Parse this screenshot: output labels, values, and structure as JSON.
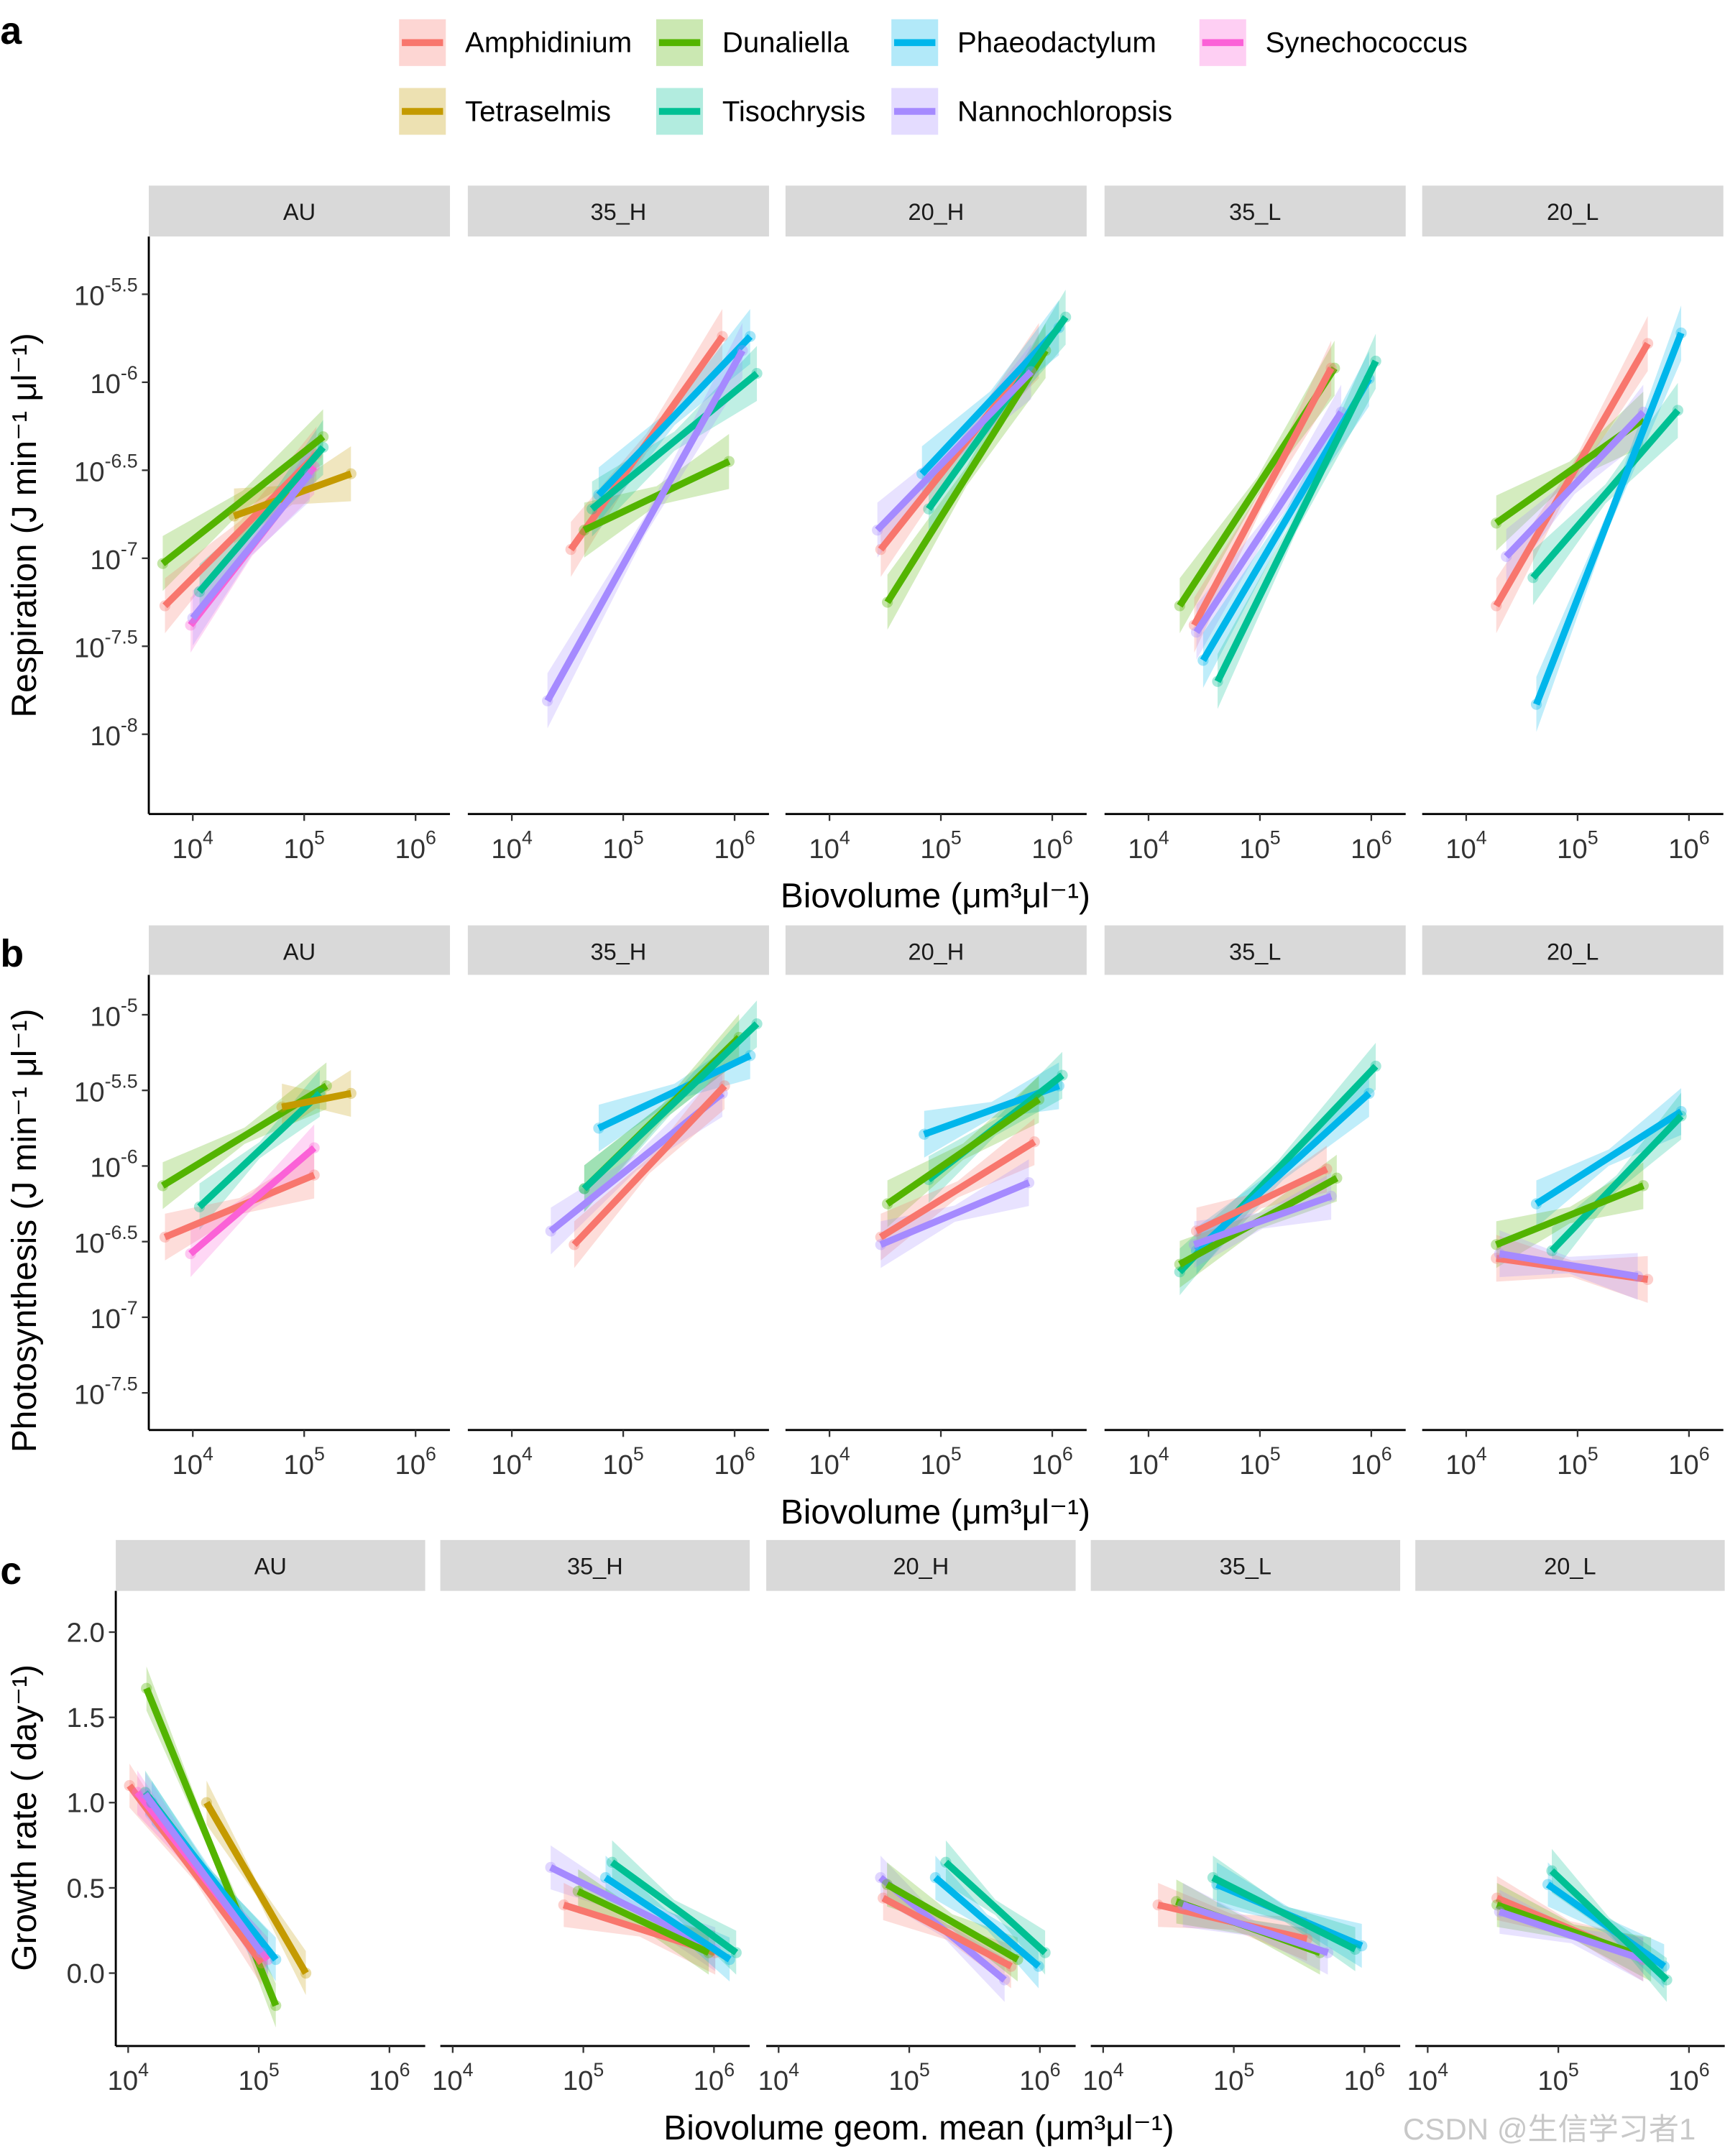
{
  "watermark": "CSDN @生信学习者1",
  "legend": [
    {
      "name": "Amphidinium",
      "color": "#F8766D"
    },
    {
      "name": "Dunaliella",
      "color": "#53B400"
    },
    {
      "name": "Phaeodactylum",
      "color": "#00B6EB"
    },
    {
      "name": "Synechococcus",
      "color": "#FB61D7"
    },
    {
      "name": "Tetraselmis",
      "color": "#C49A00"
    },
    {
      "name": "Tisochrysis",
      "color": "#00C094"
    },
    {
      "name": "Nannochloropsis",
      "color": "#A58AFF"
    }
  ],
  "chart_data": [
    {
      "panel_label": "a",
      "type": "line",
      "scale": "log10 x, log10 y",
      "facets": [
        "AU",
        "35_H",
        "20_H",
        "35_L",
        "20_L"
      ],
      "xlabel": "Biovolume (μm³μl⁻¹)",
      "ylabel": "Respiration (J min⁻¹ μl⁻¹)",
      "x_ticks": [
        "4",
        "5",
        "6"
      ],
      "y_ticks": [
        "-5.5",
        "-6",
        "-6.5",
        "-7",
        "-7.5",
        "-8"
      ],
      "series_by_facet": [
        [
          {
            "name": "Dunaliella",
            "x_log10": [
              3.73,
              5.17
            ],
            "y_log10": [
              -7.03,
              -6.31
            ]
          },
          {
            "name": "Amphidinium",
            "x_log10": [
              3.75,
              5.11
            ],
            "y_log10": [
              -7.27,
              -6.41
            ]
          },
          {
            "name": "Tetraselmis",
            "x_log10": [
              4.37,
              5.42
            ],
            "y_log10": [
              -6.76,
              -6.52
            ]
          },
          {
            "name": "Synechococcus",
            "x_log10": [
              3.98,
              5.09
            ],
            "y_log10": [
              -7.38,
              -6.48
            ]
          },
          {
            "name": "Tisochrysis",
            "x_log10": [
              4.06,
              5.17
            ],
            "y_log10": [
              -7.19,
              -6.37
            ]
          },
          {
            "name": "Nannochloropsis",
            "x_log10": [
              4.0,
              5.05
            ],
            "y_log10": [
              -7.34,
              -6.52
            ]
          }
        ],
        [
          {
            "name": "Amphidinium",
            "x_log10": [
              4.53,
              5.89
            ],
            "y_log10": [
              -6.95,
              -5.74
            ]
          },
          {
            "name": "Dunaliella",
            "x_log10": [
              4.65,
              5.95
            ],
            "y_log10": [
              -6.84,
              -6.45
            ]
          },
          {
            "name": "Phaeodactylum",
            "x_log10": [
              4.78,
              6.14
            ],
            "y_log10": [
              -6.64,
              -5.74
            ]
          },
          {
            "name": "Tisochrysis",
            "x_log10": [
              4.72,
              6.2
            ],
            "y_log10": [
              -6.72,
              -5.95
            ]
          },
          {
            "name": "Nannochloropsis",
            "x_log10": [
              4.32,
              6.07
            ],
            "y_log10": [
              -7.81,
              -5.82
            ]
          }
        ],
        [
          {
            "name": "Amphidinium",
            "x_log10": [
              4.46,
              5.88
            ],
            "y_log10": [
              -6.95,
              -5.82
            ]
          },
          {
            "name": "Dunaliella",
            "x_log10": [
              4.52,
              5.94
            ],
            "y_log10": [
              -7.25,
              -5.82
            ]
          },
          {
            "name": "Phaeodactylum",
            "x_log10": [
              4.83,
              6.06
            ],
            "y_log10": [
              -6.52,
              -5.69
            ]
          },
          {
            "name": "Tisochrysis",
            "x_log10": [
              4.89,
              6.12
            ],
            "y_log10": [
              -6.72,
              -5.63
            ]
          },
          {
            "name": "Nannochloropsis",
            "x_log10": [
              4.43,
              5.81
            ],
            "y_log10": [
              -6.84,
              -5.94
            ]
          }
        ],
        [
          {
            "name": "Dunaliella",
            "x_log10": [
              4.28,
              5.67
            ],
            "y_log10": [
              -7.27,
              -5.92
            ]
          },
          {
            "name": "Amphidinium",
            "x_log10": [
              4.41,
              5.64
            ],
            "y_log10": [
              -7.38,
              -5.92
            ]
          },
          {
            "name": "Nannochloropsis",
            "x_log10": [
              4.43,
              5.73
            ],
            "y_log10": [
              -7.42,
              -6.17
            ]
          },
          {
            "name": "Phaeodactylum",
            "x_log10": [
              4.49,
              5.98
            ],
            "y_log10": [
              -7.58,
              -5.98
            ]
          },
          {
            "name": "Tisochrysis",
            "x_log10": [
              4.62,
              6.04
            ],
            "y_log10": [
              -7.7,
              -5.88
            ]
          }
        ],
        [
          {
            "name": "Amphidinium",
            "x_log10": [
              4.27,
              5.63
            ],
            "y_log10": [
              -7.27,
              -5.78
            ]
          },
          {
            "name": "Dunaliella",
            "x_log10": [
              4.27,
              5.59
            ],
            "y_log10": [
              -6.8,
              -6.21
            ]
          },
          {
            "name": "Nannochloropsis",
            "x_log10": [
              4.36,
              5.59
            ],
            "y_log10": [
              -6.99,
              -6.17
            ]
          },
          {
            "name": "Tisochrysis",
            "x_log10": [
              4.6,
              5.9
            ],
            "y_log10": [
              -7.11,
              -6.16
            ]
          },
          {
            "name": "Phaeodactylum",
            "x_log10": [
              4.63,
              5.93
            ],
            "y_log10": [
              -7.83,
              -5.72
            ]
          }
        ]
      ]
    },
    {
      "panel_label": "b",
      "type": "line",
      "scale": "log10 x, log10 y",
      "facets": [
        "AU",
        "35_H",
        "20_H",
        "35_L",
        "20_L"
      ],
      "xlabel": "Biovolume (μm³μl⁻¹)",
      "ylabel": "Photosynthesis (J min⁻¹ μl⁻¹)",
      "x_ticks": [
        "4",
        "5",
        "6"
      ],
      "y_ticks": [
        "-5",
        "-5.5",
        "-6",
        "-6.5",
        "-7",
        "-7.5"
      ],
      "series_by_facet": [
        [
          {
            "name": "Dunaliella",
            "x_log10": [
              3.73,
              5.2
            ],
            "y_log10": [
              -6.13,
              -5.47
            ]
          },
          {
            "name": "Tisochrysis",
            "x_log10": [
              4.06,
              5.14
            ],
            "y_log10": [
              -6.27,
              -5.52
            ]
          },
          {
            "name": "Tetraselmis",
            "x_log10": [
              4.8,
              5.42
            ],
            "y_log10": [
              -5.61,
              -5.52
            ]
          },
          {
            "name": "Amphidinium",
            "x_log10": [
              3.75,
              5.09
            ],
            "y_log10": [
              -6.47,
              -6.06
            ]
          },
          {
            "name": "Synechococcus",
            "x_log10": [
              3.98,
              5.09
            ],
            "y_log10": [
              -6.58,
              -5.88
            ]
          }
        ],
        [
          {
            "name": "Phaeodactylum",
            "x_log10": [
              4.78,
              6.14
            ],
            "y_log10": [
              -5.75,
              -5.27
            ]
          },
          {
            "name": "Dunaliella",
            "x_log10": [
              4.65,
              6.04
            ],
            "y_log10": [
              -6.15,
              -5.15
            ]
          },
          {
            "name": "Tisochrysis",
            "x_log10": [
              4.65,
              6.2
            ],
            "y_log10": [
              -6.15,
              -5.06
            ]
          },
          {
            "name": "Nannochloropsis",
            "x_log10": [
              4.35,
              5.89
            ],
            "y_log10": [
              -6.43,
              -5.52
            ]
          },
          {
            "name": "Amphidinium",
            "x_log10": [
              4.56,
              5.91
            ],
            "y_log10": [
              -6.52,
              -5.47
            ]
          }
        ],
        [
          {
            "name": "Phaeodactylum",
            "x_log10": [
              4.85,
              6.06
            ],
            "y_log10": [
              -5.79,
              -5.47
            ]
          },
          {
            "name": "Tisochrysis",
            "x_log10": [
              4.89,
              6.09
            ],
            "y_log10": [
              -6.09,
              -5.4
            ]
          },
          {
            "name": "Dunaliella",
            "x_log10": [
              4.52,
              5.88
            ],
            "y_log10": [
              -6.25,
              -5.56
            ]
          },
          {
            "name": "Amphidinium",
            "x_log10": [
              4.46,
              5.84
            ],
            "y_log10": [
              -6.47,
              -5.84
            ]
          },
          {
            "name": "Nannochloropsis",
            "x_log10": [
              4.46,
              5.79
            ],
            "y_log10": [
              -6.52,
              -6.11
            ]
          }
        ],
        [
          {
            "name": "Tisochrysis",
            "x_log10": [
              4.28,
              6.04
            ],
            "y_log10": [
              -6.7,
              -5.34
            ]
          },
          {
            "name": "Phaeodactylum",
            "x_log10": [
              4.43,
              5.98
            ],
            "y_log10": [
              -6.56,
              -5.52
            ]
          },
          {
            "name": "Dunaliella",
            "x_log10": [
              4.28,
              5.69
            ],
            "y_log10": [
              -6.65,
              -6.08
            ]
          },
          {
            "name": "Amphidinium",
            "x_log10": [
              4.43,
              5.6
            ],
            "y_log10": [
              -6.43,
              -6.02
            ]
          },
          {
            "name": "Nannochloropsis",
            "x_log10": [
              4.41,
              5.64
            ],
            "y_log10": [
              -6.52,
              -6.2
            ]
          }
        ],
        [
          {
            "name": "Phaeodactylum",
            "x_log10": [
              4.63,
              5.93
            ],
            "y_log10": [
              -6.25,
              -5.64
            ]
          },
          {
            "name": "Tisochrysis",
            "x_log10": [
              4.77,
              5.93
            ],
            "y_log10": [
              -6.56,
              -5.67
            ]
          },
          {
            "name": "Dunaliella",
            "x_log10": [
              4.27,
              5.59
            ],
            "y_log10": [
              -6.52,
              -6.13
            ]
          },
          {
            "name": "Amphidinium",
            "x_log10": [
              4.27,
              5.63
            ],
            "y_log10": [
              -6.61,
              -6.75
            ]
          },
          {
            "name": "Nannochloropsis",
            "x_log10": [
              4.3,
              5.54
            ],
            "y_log10": [
              -6.58,
              -6.73
            ]
          }
        ]
      ]
    },
    {
      "panel_label": "c",
      "type": "line",
      "scale": "log10 x, linear y",
      "facets": [
        "AU",
        "35_H",
        "20_H",
        "35_L",
        "20_L"
      ],
      "xlabel": "Biovolume geom. mean (μm³μl⁻¹)",
      "ylabel": "Growth rate ( day⁻¹)",
      "x_ticks": [
        "4",
        "5",
        "6"
      ],
      "y_ticks": [
        "2.0",
        "1.5",
        "1.0",
        "0.5",
        "0.0"
      ],
      "series_by_facet": [
        [
          {
            "name": "Dunaliella",
            "x_log10": [
              4.14,
              5.13
            ],
            "y": [
              1.67,
              -0.19
            ]
          },
          {
            "name": "Amphidinium",
            "x_log10": [
              4.01,
              5.02
            ],
            "y": [
              1.1,
              0.06
            ]
          },
          {
            "name": "Tetraselmis",
            "x_log10": [
              4.6,
              5.36
            ],
            "y": [
              1.0,
              0.0
            ]
          },
          {
            "name": "Tisochrysis",
            "x_log10": [
              4.13,
              5.07
            ],
            "y": [
              1.06,
              0.12
            ]
          },
          {
            "name": "Synechococcus",
            "x_log10": [
              4.07,
              5.07
            ],
            "y": [
              1.06,
              0.08
            ]
          },
          {
            "name": "Phaeodactylum",
            "x_log10": [
              4.18,
              5.13
            ],
            "y": [
              1.0,
              0.08
            ]
          },
          {
            "name": "Nannochloropsis",
            "x_log10": [
              4.13,
              5.02
            ],
            "y": [
              1.05,
              0.12
            ]
          }
        ],
        [
          {
            "name": "Nannochloropsis",
            "x_log10": [
              4.75,
              6.01
            ],
            "y": [
              0.62,
              0.14
            ]
          },
          {
            "name": "Amphidinium",
            "x_log10": [
              4.85,
              6.01
            ],
            "y": [
              0.4,
              0.12
            ]
          },
          {
            "name": "Dunaliella",
            "x_log10": [
              4.96,
              5.96
            ],
            "y": [
              0.48,
              0.12
            ]
          },
          {
            "name": "Phaeodactylum",
            "x_log10": [
              5.17,
              6.12
            ],
            "y": [
              0.56,
              0.08
            ]
          },
          {
            "name": "Tisochrysis",
            "x_log10": [
              5.22,
              6.17
            ],
            "y": [
              0.65,
              0.12
            ]
          }
        ],
        [
          {
            "name": "Nannochloropsis",
            "x_log10": [
              4.78,
              5.73
            ],
            "y": [
              0.56,
              -0.04
            ]
          },
          {
            "name": "Amphidinium",
            "x_log10": [
              4.8,
              5.78
            ],
            "y": [
              0.44,
              0.04
            ]
          },
          {
            "name": "Dunaliella",
            "x_log10": [
              4.83,
              5.83
            ],
            "y": [
              0.52,
              0.08
            ]
          },
          {
            "name": "Phaeodactylum",
            "x_log10": [
              5.2,
              5.99
            ],
            "y": [
              0.56,
              0.04
            ]
          },
          {
            "name": "Tisochrysis",
            "x_log10": [
              5.28,
              6.04
            ],
            "y": [
              0.65,
              0.12
            ]
          }
        ],
        [
          {
            "name": "Amphidinium",
            "x_log10": [
              4.42,
              5.56
            ],
            "y": [
              0.4,
              0.2
            ]
          },
          {
            "name": "Dunaliella",
            "x_log10": [
              4.56,
              5.66
            ],
            "y": [
              0.42,
              0.12
            ]
          },
          {
            "name": "Nannochloropsis",
            "x_log10": [
              4.61,
              5.72
            ],
            "y": [
              0.4,
              0.12
            ]
          },
          {
            "name": "Phaeodactylum",
            "x_log10": [
              4.87,
              5.98
            ],
            "y": [
              0.52,
              0.16
            ]
          },
          {
            "name": "Tisochrysis",
            "x_log10": [
              4.84,
              5.93
            ],
            "y": [
              0.56,
              0.14
            ]
          }
        ],
        [
          {
            "name": "Amphidinium",
            "x_log10": [
              4.53,
              5.65
            ],
            "y": [
              0.44,
              0.08
            ]
          },
          {
            "name": "Dunaliella",
            "x_log10": [
              4.53,
              5.71
            ],
            "y": [
              0.4,
              0.08
            ]
          },
          {
            "name": "Nannochloropsis",
            "x_log10": [
              4.55,
              5.65
            ],
            "y": [
              0.36,
              0.08
            ]
          },
          {
            "name": "Phaeodactylum",
            "x_log10": [
              4.92,
              5.81
            ],
            "y": [
              0.52,
              0.04
            ]
          },
          {
            "name": "Tisochrysis",
            "x_log10": [
              4.95,
              5.83
            ],
            "y": [
              0.6,
              -0.04
            ]
          }
        ]
      ]
    }
  ]
}
